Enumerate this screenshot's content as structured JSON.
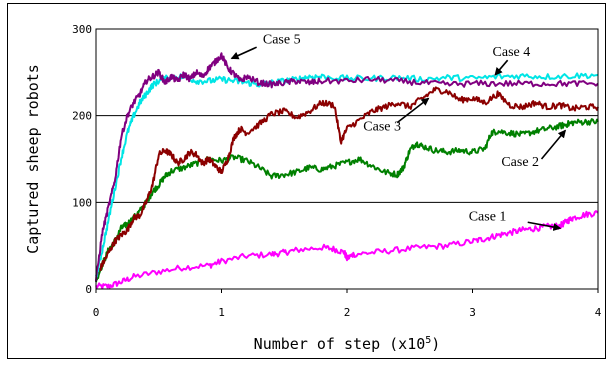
{
  "chart_data": {
    "type": "line",
    "xlabel": "Number of step (x10",
    "xlabel_sup": "5",
    "xlabel_close": ")",
    "ylabel": "Captured sheep robots",
    "xlim": [
      0,
      4
    ],
    "ylim": [
      0,
      300
    ],
    "x_ticks": [
      "0",
      "1",
      "2",
      "3",
      "4"
    ],
    "y_ticks": [
      "0",
      "100",
      "200",
      "300"
    ],
    "grid": "horizontal",
    "series": [
      {
        "name": "Case 1",
        "color": "#ff00ff",
        "points": [
          [
            0,
            3
          ],
          [
            0.1,
            3
          ],
          [
            0.2,
            8
          ],
          [
            0.3,
            14
          ],
          [
            0.5,
            20
          ],
          [
            0.7,
            25
          ],
          [
            0.9,
            27
          ],
          [
            1.0,
            32
          ],
          [
            1.2,
            38
          ],
          [
            1.4,
            40
          ],
          [
            1.5,
            42
          ],
          [
            1.6,
            45
          ],
          [
            1.8,
            48
          ],
          [
            1.9,
            46
          ],
          [
            1.98,
            42
          ],
          [
            2.0,
            35
          ],
          [
            2.05,
            40
          ],
          [
            2.2,
            42
          ],
          [
            2.4,
            45
          ],
          [
            2.6,
            48
          ],
          [
            2.8,
            50
          ],
          [
            3.0,
            55
          ],
          [
            3.1,
            58
          ],
          [
            3.2,
            62
          ],
          [
            3.3,
            65
          ],
          [
            3.4,
            68
          ],
          [
            3.5,
            70
          ],
          [
            3.6,
            72
          ],
          [
            3.7,
            73
          ],
          [
            3.75,
            78
          ],
          [
            3.8,
            82
          ],
          [
            3.9,
            86
          ],
          [
            4.0,
            88
          ]
        ]
      },
      {
        "name": "Case 2",
        "color": "#008000",
        "points": [
          [
            0,
            10
          ],
          [
            0.05,
            28
          ],
          [
            0.1,
            45
          ],
          [
            0.15,
            55
          ],
          [
            0.2,
            70
          ],
          [
            0.25,
            75
          ],
          [
            0.3,
            82
          ],
          [
            0.35,
            90
          ],
          [
            0.4,
            100
          ],
          [
            0.45,
            112
          ],
          [
            0.5,
            120
          ],
          [
            0.55,
            130
          ],
          [
            0.6,
            136
          ],
          [
            0.7,
            140
          ],
          [
            0.8,
            145
          ],
          [
            0.9,
            150
          ],
          [
            1.0,
            148
          ],
          [
            1.1,
            152
          ],
          [
            1.2,
            148
          ],
          [
            1.3,
            140
          ],
          [
            1.4,
            130
          ],
          [
            1.5,
            132
          ],
          [
            1.6,
            135
          ],
          [
            1.7,
            140
          ],
          [
            1.8,
            138
          ],
          [
            1.9,
            142
          ],
          [
            2.0,
            146
          ],
          [
            2.1,
            150
          ],
          [
            2.2,
            142
          ],
          [
            2.3,
            135
          ],
          [
            2.4,
            132
          ],
          [
            2.45,
            140
          ],
          [
            2.5,
            160
          ],
          [
            2.55,
            168
          ],
          [
            2.6,
            165
          ],
          [
            2.7,
            160
          ],
          [
            2.8,
            158
          ],
          [
            2.9,
            160
          ],
          [
            3.0,
            158
          ],
          [
            3.1,
            162
          ],
          [
            3.15,
            180
          ],
          [
            3.2,
            182
          ],
          [
            3.3,
            180
          ],
          [
            3.4,
            178
          ],
          [
            3.5,
            182
          ],
          [
            3.6,
            185
          ],
          [
            3.7,
            188
          ],
          [
            3.75,
            190
          ],
          [
            3.8,
            192
          ],
          [
            3.9,
            193
          ],
          [
            4.0,
            193
          ]
        ]
      },
      {
        "name": "Case 3",
        "color": "#8b0000",
        "points": [
          [
            0,
            15
          ],
          [
            0.05,
            28
          ],
          [
            0.1,
            42
          ],
          [
            0.15,
            55
          ],
          [
            0.2,
            62
          ],
          [
            0.25,
            68
          ],
          [
            0.3,
            82
          ],
          [
            0.35,
            85
          ],
          [
            0.4,
            100
          ],
          [
            0.45,
            120
          ],
          [
            0.5,
            155
          ],
          [
            0.55,
            160
          ],
          [
            0.6,
            155
          ],
          [
            0.65,
            145
          ],
          [
            0.7,
            150
          ],
          [
            0.75,
            158
          ],
          [
            0.8,
            155
          ],
          [
            0.85,
            145
          ],
          [
            0.9,
            150
          ],
          [
            0.95,
            142
          ],
          [
            1.0,
            135
          ],
          [
            1.05,
            150
          ],
          [
            1.1,
            175
          ],
          [
            1.15,
            185
          ],
          [
            1.2,
            180
          ],
          [
            1.3,
            190
          ],
          [
            1.4,
            202
          ],
          [
            1.5,
            205
          ],
          [
            1.6,
            198
          ],
          [
            1.7,
            205
          ],
          [
            1.8,
            215
          ],
          [
            1.9,
            212
          ],
          [
            1.95,
            170
          ],
          [
            2.0,
            185
          ],
          [
            2.1,
            195
          ],
          [
            2.2,
            205
          ],
          [
            2.3,
            210
          ],
          [
            2.4,
            215
          ],
          [
            2.5,
            210
          ],
          [
            2.6,
            220
          ],
          [
            2.7,
            230
          ],
          [
            2.8,
            228
          ],
          [
            2.9,
            218
          ],
          [
            3.0,
            220
          ],
          [
            3.1,
            215
          ],
          [
            3.2,
            225
          ],
          [
            3.3,
            212
          ],
          [
            3.4,
            210
          ],
          [
            3.5,
            215
          ],
          [
            3.6,
            210
          ],
          [
            3.7,
            212
          ],
          [
            3.8,
            208
          ],
          [
            3.9,
            210
          ],
          [
            4.0,
            210
          ]
        ]
      },
      {
        "name": "Case 4",
        "color": "#00e5e5",
        "points": [
          [
            0,
            12
          ],
          [
            0.05,
            45
          ],
          [
            0.1,
            80
          ],
          [
            0.15,
            115
          ],
          [
            0.2,
            150
          ],
          [
            0.25,
            180
          ],
          [
            0.3,
            200
          ],
          [
            0.35,
            215
          ],
          [
            0.4,
            225
          ],
          [
            0.45,
            235
          ],
          [
            0.5,
            240
          ],
          [
            0.6,
            245
          ],
          [
            0.7,
            245
          ],
          [
            0.8,
            240
          ],
          [
            0.9,
            240
          ],
          [
            1.0,
            242
          ],
          [
            1.1,
            240
          ],
          [
            1.2,
            238
          ],
          [
            1.3,
            236
          ],
          [
            1.4,
            238
          ],
          [
            1.5,
            240
          ],
          [
            1.6,
            242
          ],
          [
            1.7,
            245
          ],
          [
            1.8,
            245
          ],
          [
            2.0,
            243
          ],
          [
            2.2,
            243
          ],
          [
            2.4,
            244
          ],
          [
            2.6,
            242
          ],
          [
            2.8,
            244
          ],
          [
            3.0,
            243
          ],
          [
            3.2,
            245
          ],
          [
            3.4,
            246
          ],
          [
            3.6,
            245
          ],
          [
            3.8,
            246
          ],
          [
            4.0,
            247
          ]
        ]
      },
      {
        "name": "Case 5",
        "color": "#800080",
        "points": [
          [
            0,
            10
          ],
          [
            0.05,
            65
          ],
          [
            0.1,
            95
          ],
          [
            0.15,
            125
          ],
          [
            0.2,
            175
          ],
          [
            0.25,
            200
          ],
          [
            0.3,
            215
          ],
          [
            0.35,
            225
          ],
          [
            0.4,
            240
          ],
          [
            0.45,
            245
          ],
          [
            0.5,
            250
          ],
          [
            0.55,
            238
          ],
          [
            0.6,
            245
          ],
          [
            0.65,
            240
          ],
          [
            0.7,
            248
          ],
          [
            0.75,
            242
          ],
          [
            0.8,
            250
          ],
          [
            0.85,
            245
          ],
          [
            0.9,
            255
          ],
          [
            0.95,
            262
          ],
          [
            1.0,
            270
          ],
          [
            1.05,
            255
          ],
          [
            1.1,
            248
          ],
          [
            1.15,
            240
          ],
          [
            1.2,
            245
          ],
          [
            1.3,
            238
          ],
          [
            1.4,
            236
          ],
          [
            1.5,
            238
          ],
          [
            1.6,
            240
          ],
          [
            1.7,
            238
          ],
          [
            1.8,
            240
          ],
          [
            2.0,
            240
          ],
          [
            2.2,
            242
          ],
          [
            2.4,
            240
          ],
          [
            2.6,
            238
          ],
          [
            2.8,
            236
          ],
          [
            3.0,
            237
          ],
          [
            3.2,
            237
          ],
          [
            3.4,
            237
          ],
          [
            3.6,
            237
          ],
          [
            3.8,
            237
          ],
          [
            4.0,
            237
          ]
        ]
      }
    ],
    "annotations": [
      {
        "text": "Case 5",
        "label_x": 1.48,
        "label_y": 283,
        "arrow_from": [
          1.28,
          279
        ],
        "arrow_to": [
          1.08,
          266
        ]
      },
      {
        "text": "Case 4",
        "label_x": 3.31,
        "label_y": 269,
        "arrow_from": [
          3.28,
          264
        ],
        "arrow_to": [
          3.18,
          247
        ]
      },
      {
        "text": "Case 3",
        "label_x": 2.28,
        "label_y": 183,
        "arrow_from": [
          2.4,
          192
        ],
        "arrow_to": [
          2.65,
          220
        ]
      },
      {
        "text": "Case 2",
        "label_x": 3.38,
        "label_y": 142,
        "arrow_from": [
          3.55,
          150
        ],
        "arrow_to": [
          3.74,
          183
        ]
      },
      {
        "text": "Case 1",
        "label_x": 3.12,
        "label_y": 79,
        "arrow_from": [
          3.44,
          77
        ],
        "arrow_to": [
          3.7,
          70
        ]
      }
    ]
  }
}
